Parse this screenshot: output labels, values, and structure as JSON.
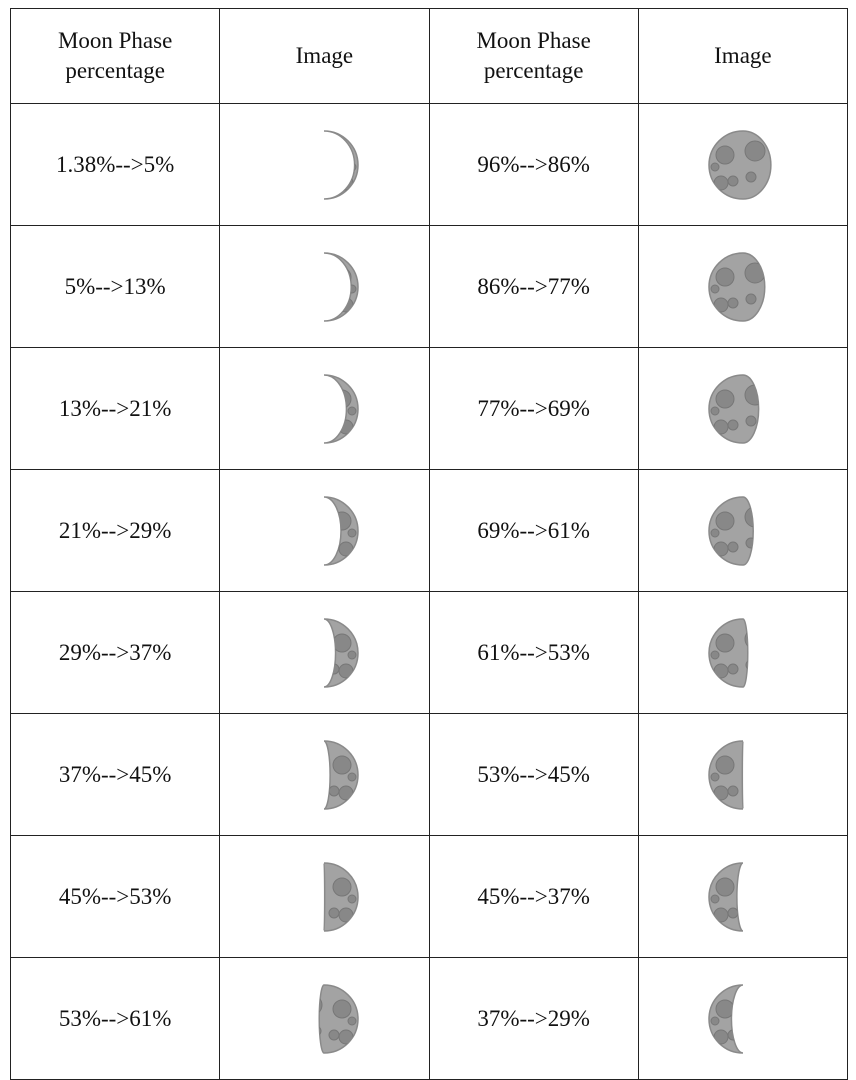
{
  "table": {
    "header": [
      "Moon Phase percentage",
      "Image",
      "Moon Phase percentage",
      "Image"
    ],
    "rows": [
      [
        "1.38%-->5%",
        "96%-->86%"
      ],
      [
        "5%-->13%",
        "86%-->77%"
      ],
      [
        "13%-->21%",
        "77%-->69%"
      ],
      [
        "21%-->29%",
        "69%-->61%"
      ],
      [
        "29%-->37%",
        "61%-->53%"
      ],
      [
        "37%-->45%",
        "53%-->45%"
      ],
      [
        "45%-->53%",
        "45%-->37%"
      ],
      [
        "53%-->61%",
        "37%-->29%"
      ]
    ]
  }
}
